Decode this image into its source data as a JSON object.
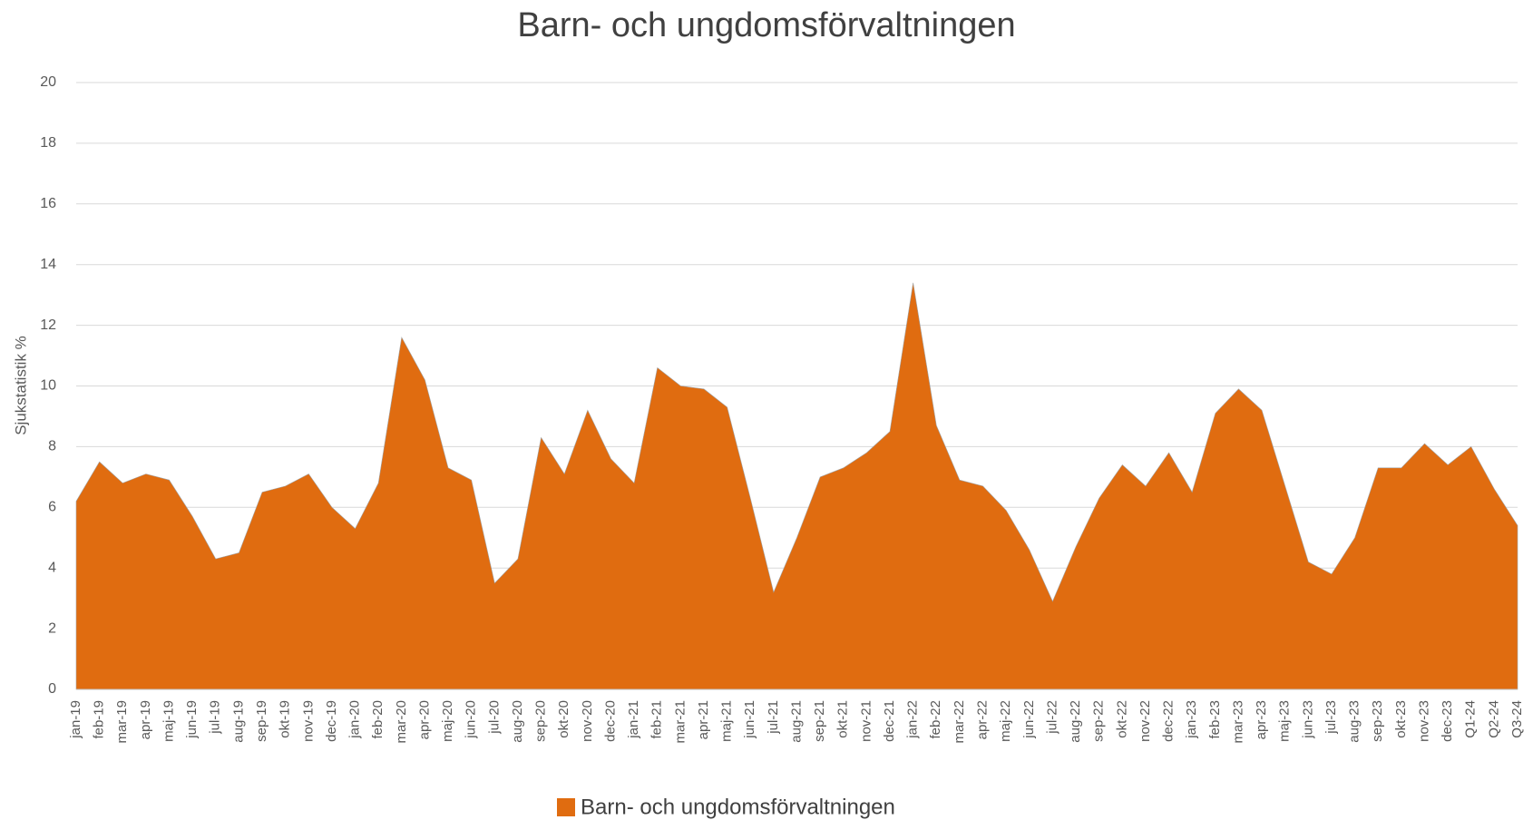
{
  "chart_data": {
    "type": "area",
    "title": "Barn- och ungdomsförvaltningen",
    "y_label": "Sjukstatistik %",
    "categories": [
      "jan-19",
      "feb-19",
      "mar-19",
      "apr-19",
      "maj-19",
      "jun-19",
      "jul-19",
      "aug-19",
      "sep-19",
      "okt-19",
      "nov-19",
      "dec-19",
      "jan-20",
      "feb-20",
      "mar-20",
      "apr-20",
      "maj-20",
      "jun-20",
      "jul-20",
      "aug-20",
      "sep-20",
      "okt-20",
      "nov-20",
      "dec-20",
      "jan-21",
      "feb-21",
      "mar-21",
      "apr-21",
      "maj-21",
      "jun-21",
      "jul-21",
      "aug-21",
      "sep-21",
      "okt-21",
      "nov-21",
      "dec-21",
      "jan-22",
      "feb-22",
      "mar-22",
      "apr-22",
      "maj-22",
      "jun-22",
      "jul-22",
      "aug-22",
      "sep-22",
      "okt-22",
      "nov-22",
      "dec-22",
      "jan-23",
      "feb-23",
      "mar-23",
      "apr-23",
      "maj-23",
      "jun-23",
      "jul-23",
      "aug-23",
      "sep-23",
      "okt-23",
      "nov-23",
      "dec-23",
      "Q1-24",
      "Q2-24",
      "Q3-24"
    ],
    "series": [
      {
        "name": "Barn- och ungdomsförvaltningen",
        "color": "#e06c10",
        "values": [
          6.2,
          7.5,
          6.8,
          7.1,
          6.9,
          5.7,
          4.3,
          4.5,
          6.5,
          6.7,
          7.1,
          6.0,
          5.3,
          6.8,
          11.6,
          10.2,
          7.3,
          6.9,
          3.5,
          4.3,
          8.3,
          7.1,
          9.2,
          7.6,
          6.8,
          10.6,
          10.0,
          9.9,
          9.3,
          6.3,
          3.2,
          5.0,
          7.0,
          7.3,
          7.8,
          8.5,
          13.4,
          8.7,
          6.9,
          6.7,
          5.9,
          4.6,
          2.9,
          4.7,
          6.3,
          7.4,
          6.7,
          7.8,
          6.5,
          9.1,
          9.9,
          9.2,
          6.7,
          4.2,
          3.8,
          5.0,
          7.3,
          7.3,
          8.1,
          7.4,
          8.0,
          6.6,
          5.4
        ]
      }
    ],
    "ylim": [
      0,
      20
    ],
    "yticks": [
      0,
      2,
      4,
      6,
      8,
      10,
      12,
      14,
      16,
      18,
      20
    ],
    "grid": true,
    "legend": "bottom"
  }
}
